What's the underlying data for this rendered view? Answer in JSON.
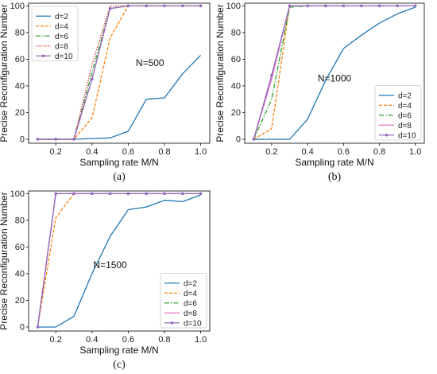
{
  "chart_data": [
    {
      "type": "line",
      "panel_label": "(a)",
      "annotation": "N=500",
      "xlabel": "Sampling rate M/N",
      "ylabel": "Precise Reconfiguration Number",
      "xlim": [
        0.05,
        1.05
      ],
      "ylim": [
        -3,
        102
      ],
      "xticks": [
        "0.2",
        "0.4",
        "0.6",
        "0.8",
        "1.0"
      ],
      "yticks": [
        "0",
        "20",
        "40",
        "60",
        "80",
        "100"
      ],
      "grid": false,
      "legend_position": "top-left",
      "x": [
        0.1,
        0.2,
        0.3,
        0.4,
        0.5,
        0.6,
        0.7,
        0.8,
        0.9,
        1.0
      ],
      "series": [
        {
          "name": "d=2",
          "color": "#1f77b4",
          "style": "solid",
          "values": [
            0,
            0,
            0,
            0.5,
            1,
            6,
            30,
            31,
            49,
            63
          ]
        },
        {
          "name": "d=4",
          "color": "#ff7f0e",
          "style": "dashed",
          "values": [
            0,
            0,
            0,
            16,
            76,
            100,
            100,
            100,
            100,
            100
          ]
        },
        {
          "name": "d=6",
          "color": "#2ca02c",
          "style": "dashdot",
          "values": [
            0,
            0,
            0,
            50,
            98,
            100,
            100,
            100,
            100,
            100
          ]
        },
        {
          "name": "d=8",
          "color": "#d62728",
          "style": "dotted",
          "values": [
            0,
            0,
            0,
            56,
            100,
            100,
            100,
            100,
            100,
            100
          ]
        },
        {
          "name": "d=10",
          "color": "#9467bd",
          "style": "marker",
          "values": [
            0,
            0,
            0,
            45,
            98,
            100,
            100,
            100,
            100,
            100
          ]
        }
      ]
    },
    {
      "type": "line",
      "panel_label": "(b)",
      "annotation": "N=1000",
      "xlabel": "Sampling rate M/N",
      "ylabel": "Precise Reconfiguration Number",
      "xlim": [
        0.05,
        1.05
      ],
      "ylim": [
        -3,
        102
      ],
      "xticks": [
        "0.2",
        "0.4",
        "0.6",
        "0.8",
        "1.0"
      ],
      "yticks": [
        "0",
        "20",
        "40",
        "60",
        "80",
        "100"
      ],
      "grid": false,
      "legend_position": "bottom-right",
      "x": [
        0.1,
        0.2,
        0.3,
        0.4,
        0.5,
        0.6,
        0.7,
        0.8,
        0.9,
        1.0
      ],
      "series": [
        {
          "name": "d=2",
          "color": "#1f77b4",
          "style": "solid",
          "values": [
            0,
            0,
            0,
            15,
            44,
            68,
            78,
            87,
            94,
            99
          ]
        },
        {
          "name": "d=4",
          "color": "#ff7f0e",
          "style": "dashed",
          "values": [
            0,
            8,
            100,
            100,
            100,
            100,
            100,
            100,
            100,
            100
          ]
        },
        {
          "name": "d=6",
          "color": "#2ca02c",
          "style": "dashdot",
          "values": [
            0,
            30,
            99,
            100,
            100,
            100,
            100,
            100,
            100,
            100
          ]
        },
        {
          "name": "d=8",
          "color": "#e377c2",
          "style": "solid",
          "values": [
            0,
            45,
            100,
            100,
            100,
            100,
            100,
            100,
            100,
            100
          ]
        },
        {
          "name": "d=10",
          "color": "#9467bd",
          "style": "marker",
          "values": [
            0,
            48,
            100,
            100,
            100,
            100,
            100,
            100,
            100,
            100
          ]
        }
      ]
    },
    {
      "type": "line",
      "panel_label": "(c)",
      "annotation": "N=1500",
      "xlabel": "Sampling rate M/N",
      "ylabel": "Precise Reconfiguration Number",
      "xlim": [
        0.05,
        1.05
      ],
      "ylim": [
        -3,
        102
      ],
      "xticks": [
        "0.2",
        "0.4",
        "0.6",
        "0.8",
        "1.0"
      ],
      "yticks": [
        "0",
        "20",
        "40",
        "60",
        "80",
        "100"
      ],
      "grid": false,
      "legend_position": "bottom-right",
      "x": [
        0.1,
        0.2,
        0.3,
        0.4,
        0.5,
        0.6,
        0.7,
        0.8,
        0.9,
        1.0
      ],
      "series": [
        {
          "name": "d=2",
          "color": "#1f77b4",
          "style": "solid",
          "values": [
            0,
            0,
            8,
            40,
            68,
            88,
            90,
            95,
            94,
            99
          ]
        },
        {
          "name": "d=4",
          "color": "#ff7f0e",
          "style": "dashed",
          "values": [
            0,
            82,
            100,
            100,
            100,
            100,
            100,
            100,
            100,
            100
          ]
        },
        {
          "name": "d=6",
          "color": "#2ca02c",
          "style": "dashdot",
          "values": [
            0,
            100,
            100,
            100,
            100,
            100,
            100,
            100,
            100,
            100
          ]
        },
        {
          "name": "d=8",
          "color": "#e377c2",
          "style": "solid",
          "values": [
            0,
            100,
            100,
            100,
            100,
            100,
            100,
            100,
            100,
            100
          ]
        },
        {
          "name": "d=10",
          "color": "#9467bd",
          "style": "marker",
          "values": [
            0,
            100,
            100,
            100,
            100,
            100,
            100,
            100,
            100,
            100
          ]
        }
      ]
    }
  ]
}
